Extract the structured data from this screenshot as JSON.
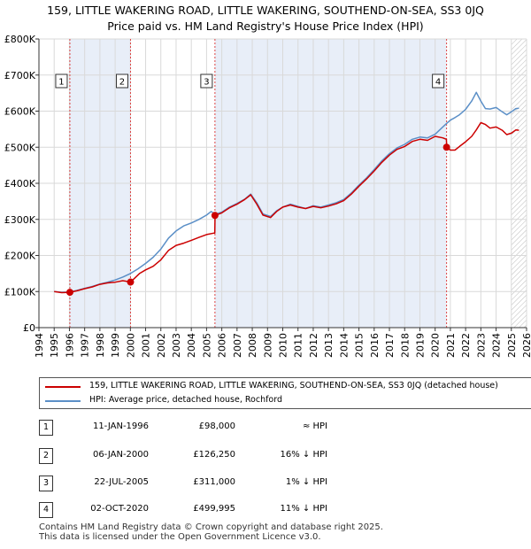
{
  "title_line1": "159, LITTLE WAKERING ROAD, LITTLE WAKERING, SOUTHEND-ON-SEA, SS3 0JQ",
  "title_line2": "Price paid vs. HM Land Registry's House Price Index (HPI)",
  "colors": {
    "property": "#cc0000",
    "hpi": "#5b8fc7",
    "shade": "#e8eef8",
    "grid": "#d9d9d9",
    "vline": "#dd4444"
  },
  "chart_data": {
    "type": "line",
    "title": "Price paid vs. HM Land Registry's House Price Index (HPI)",
    "xlim": [
      1994,
      2026
    ],
    "ylim": [
      0,
      800000
    ],
    "x_ticks": [
      "1994",
      "1995",
      "1996",
      "1997",
      "1998",
      "1999",
      "2000",
      "2001",
      "2002",
      "2003",
      "2004",
      "2005",
      "2006",
      "2007",
      "2008",
      "2009",
      "2010",
      "2011",
      "2012",
      "2013",
      "2014",
      "2015",
      "2016",
      "2017",
      "2018",
      "2019",
      "2020",
      "2021",
      "2022",
      "2023",
      "2024",
      "2025",
      "2026"
    ],
    "y_ticks": [
      {
        "v": 0,
        "label": "£0"
      },
      {
        "v": 100000,
        "label": "£100K"
      },
      {
        "v": 200000,
        "label": "£200K"
      },
      {
        "v": 300000,
        "label": "£300K"
      },
      {
        "v": 400000,
        "label": "£400K"
      },
      {
        "v": 500000,
        "label": "£500K"
      },
      {
        "v": 600000,
        "label": "£600K"
      },
      {
        "v": 700000,
        "label": "£700K"
      },
      {
        "v": 800000,
        "label": "£800K"
      }
    ],
    "series": [
      {
        "name": "159, LITTLE WAKERING ROAD, LITTLE WAKERING, SOUTHEND-ON-SEA, SS3 0JQ (detached house)",
        "color": "#cc0000",
        "x": [
          1995.0,
          1995.5,
          1996.03,
          1996.5,
          1997.0,
          1997.5,
          1998.0,
          1998.5,
          1999.0,
          1999.5,
          1999.95,
          2000.01,
          2000.3,
          2000.6,
          2001.0,
          2001.5,
          2002.0,
          2002.5,
          2003.0,
          2003.5,
          2004.0,
          2004.5,
          2005.0,
          2005.5,
          2005.54,
          2005.56,
          2006.0,
          2006.5,
          2007.0,
          2007.5,
          2007.9,
          2008.3,
          2008.7,
          2009.2,
          2009.6,
          2010.0,
          2010.5,
          2011.0,
          2011.5,
          2012.0,
          2012.5,
          2013.0,
          2013.5,
          2014.0,
          2014.5,
          2015.0,
          2015.5,
          2016.0,
          2016.5,
          2017.0,
          2017.5,
          2018.0,
          2018.5,
          2019.0,
          2019.5,
          2020.0,
          2020.5,
          2020.74,
          2020.76,
          2021.0,
          2021.3,
          2021.6,
          2022.0,
          2022.4,
          2022.7,
          2023.0,
          2023.3,
          2023.6,
          2024.0,
          2024.4,
          2024.7,
          2025.0,
          2025.3,
          2025.5
        ],
        "y": [
          100000,
          97000,
          98000,
          102000,
          108000,
          113000,
          120000,
          124000,
          126000,
          130000,
          127000,
          126250,
          138000,
          150000,
          160000,
          170000,
          188000,
          214000,
          228000,
          234000,
          242000,
          250000,
          258000,
          262000,
          262000,
          311000,
          318000,
          332000,
          342000,
          355000,
          368000,
          342000,
          312000,
          305000,
          322000,
          334000,
          340000,
          334000,
          330000,
          336000,
          332000,
          337000,
          343000,
          352000,
          370000,
          392000,
          412000,
          434000,
          458000,
          478000,
          494000,
          502000,
          516000,
          522000,
          519000,
          530000,
          526000,
          522000,
          499995,
          492000,
          492000,
          502000,
          515000,
          530000,
          548000,
          568000,
          563000,
          553000,
          556000,
          547000,
          535000,
          539000,
          548000,
          547000
        ]
      },
      {
        "name": "HPI: Average price, detached house, Rochford",
        "color": "#5b8fc7",
        "x": [
          1995.0,
          1995.5,
          1996.03,
          1996.5,
          1997.0,
          1997.5,
          1998.0,
          1998.5,
          1999.0,
          1999.5,
          2000.0,
          2000.5,
          2001.0,
          2001.5,
          2002.0,
          2002.5,
          2003.0,
          2003.5,
          2004.0,
          2004.5,
          2005.0,
          2005.3,
          2005.55,
          2006.0,
          2006.5,
          2007.0,
          2007.5,
          2007.9,
          2008.3,
          2008.7,
          2009.2,
          2009.6,
          2010.0,
          2010.5,
          2011.0,
          2011.5,
          2012.0,
          2012.5,
          2013.0,
          2013.5,
          2014.0,
          2014.5,
          2015.0,
          2015.5,
          2016.0,
          2016.5,
          2017.0,
          2017.5,
          2018.0,
          2018.5,
          2019.0,
          2019.5,
          2020.0,
          2020.5,
          2020.75,
          2021.0,
          2021.3,
          2021.6,
          2022.0,
          2022.4,
          2022.7,
          2023.0,
          2023.3,
          2023.6,
          2024.0,
          2024.4,
          2024.7,
          2025.0,
          2025.3,
          2025.5
        ],
        "y": [
          100000,
          98000,
          99000,
          103000,
          109000,
          114000,
          121000,
          126000,
          132000,
          140000,
          150000,
          163000,
          178000,
          195000,
          218000,
          248000,
          268000,
          282000,
          290000,
          300000,
          312000,
          322000,
          314000,
          320000,
          334000,
          344000,
          356000,
          370000,
          346000,
          315000,
          308000,
          324000,
          334000,
          342000,
          336000,
          330000,
          338000,
          334000,
          340000,
          346000,
          355000,
          373000,
          395000,
          415000,
          438000,
          462000,
          482000,
          498000,
          508000,
          522000,
          528000,
          526000,
          536000,
          556000,
          566000,
          575000,
          582000,
          590000,
          605000,
          628000,
          652000,
          628000,
          607000,
          606000,
          610000,
          598000,
          590000,
          598000,
          607000,
          608000
        ]
      }
    ],
    "markers": [
      {
        "id": "1",
        "x": 1996.03,
        "y": 98000
      },
      {
        "id": "2",
        "x": 2000.01,
        "y": 126250
      },
      {
        "id": "3",
        "x": 2005.55,
        "y": 311000
      },
      {
        "id": "4",
        "x": 2020.75,
        "y": 499995
      }
    ],
    "shaded_spans": [
      [
        1996.03,
        2000.01
      ],
      [
        2005.55,
        2020.75
      ]
    ],
    "hatched_from": 2025.0
  },
  "legend": {
    "property_label": "159, LITTLE WAKERING ROAD, LITTLE WAKERING, SOUTHEND-ON-SEA, SS3 0JQ (detached house)",
    "hpi_label": "HPI: Average price, detached house, Rochford"
  },
  "transactions": [
    {
      "num": "1",
      "date": "11-JAN-1996",
      "price": "£98,000",
      "delta": "≈ HPI"
    },
    {
      "num": "2",
      "date": "06-JAN-2000",
      "price": "£126,250",
      "delta": "16% ↓ HPI"
    },
    {
      "num": "3",
      "date": "22-JUL-2005",
      "price": "£311,000",
      "delta": "1% ↓ HPI"
    },
    {
      "num": "4",
      "date": "02-OCT-2020",
      "price": "£499,995",
      "delta": "11% ↓ HPI"
    }
  ],
  "footer_line1": "Contains HM Land Registry data © Crown copyright and database right 2025.",
  "footer_line2": "This data is licensed under the Open Government Licence v3.0."
}
